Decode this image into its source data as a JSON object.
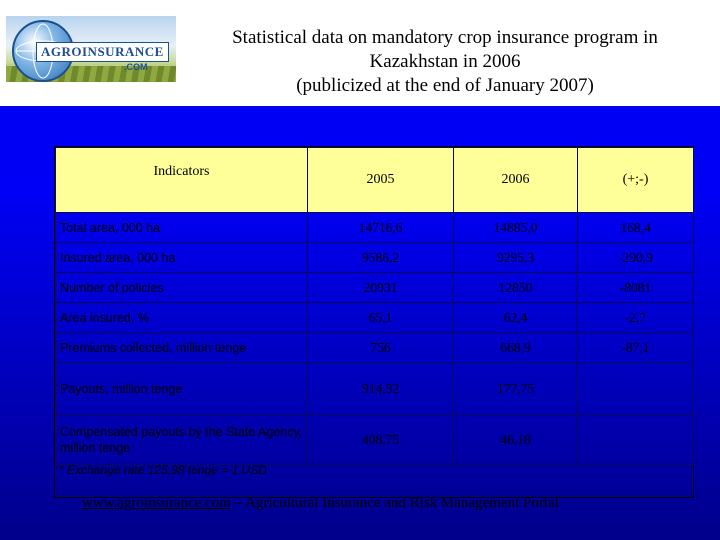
{
  "logo": {
    "brand_text": "AGROINSURANCE",
    "domain_text": ".COM"
  },
  "title": {
    "line1": "Statistical data on mandatory crop insurance program in",
    "line2": "Kazakhstan in 2006",
    "line3": "(publicized at the end of January 2007)"
  },
  "table": {
    "headers": [
      "Indicators",
      "2005",
      "2006",
      "(+;-)"
    ],
    "rows": [
      {
        "label": "Total area, 000 ha",
        "v2005": "14716,6",
        "v2006": "14885,0",
        "diff": "168,4"
      },
      {
        "label": "Insured area, 000 ha",
        "v2005": "9586,2",
        "v2006": "9295,3",
        "diff": "-290,9"
      },
      {
        "label": "Number of policies",
        "v2005": "20931",
        "v2006": "12850",
        "diff": "-8081"
      },
      {
        "label": "Area insured, %",
        "v2005": "65,1",
        "v2006": "62,4",
        "diff": "-2,7"
      },
      {
        "label": "Premiums collected, million tenge",
        "v2005": "756",
        "v2006": "668,9",
        "diff": "-87,1"
      },
      {
        "label": "Payouts, million tenge",
        "v2005": "914,92",
        "v2006": "177,75",
        "diff": ""
      },
      {
        "label": "Compensated payouts by the State Agency, million tenge",
        "v2005": "408,75",
        "v2006": "46,18",
        "diff": ""
      }
    ],
    "footnote": "* Exchange rate 125,98 tenge = 1 USD"
  },
  "footer": {
    "link_text": "www.agroinsurance.com",
    "rest_text": " – Agricultural Insurance and Risk Management Portal"
  },
  "colors": {
    "background_top": "#0000ee",
    "background_bottom": "#00008a",
    "header_row": "#ffff99"
  }
}
